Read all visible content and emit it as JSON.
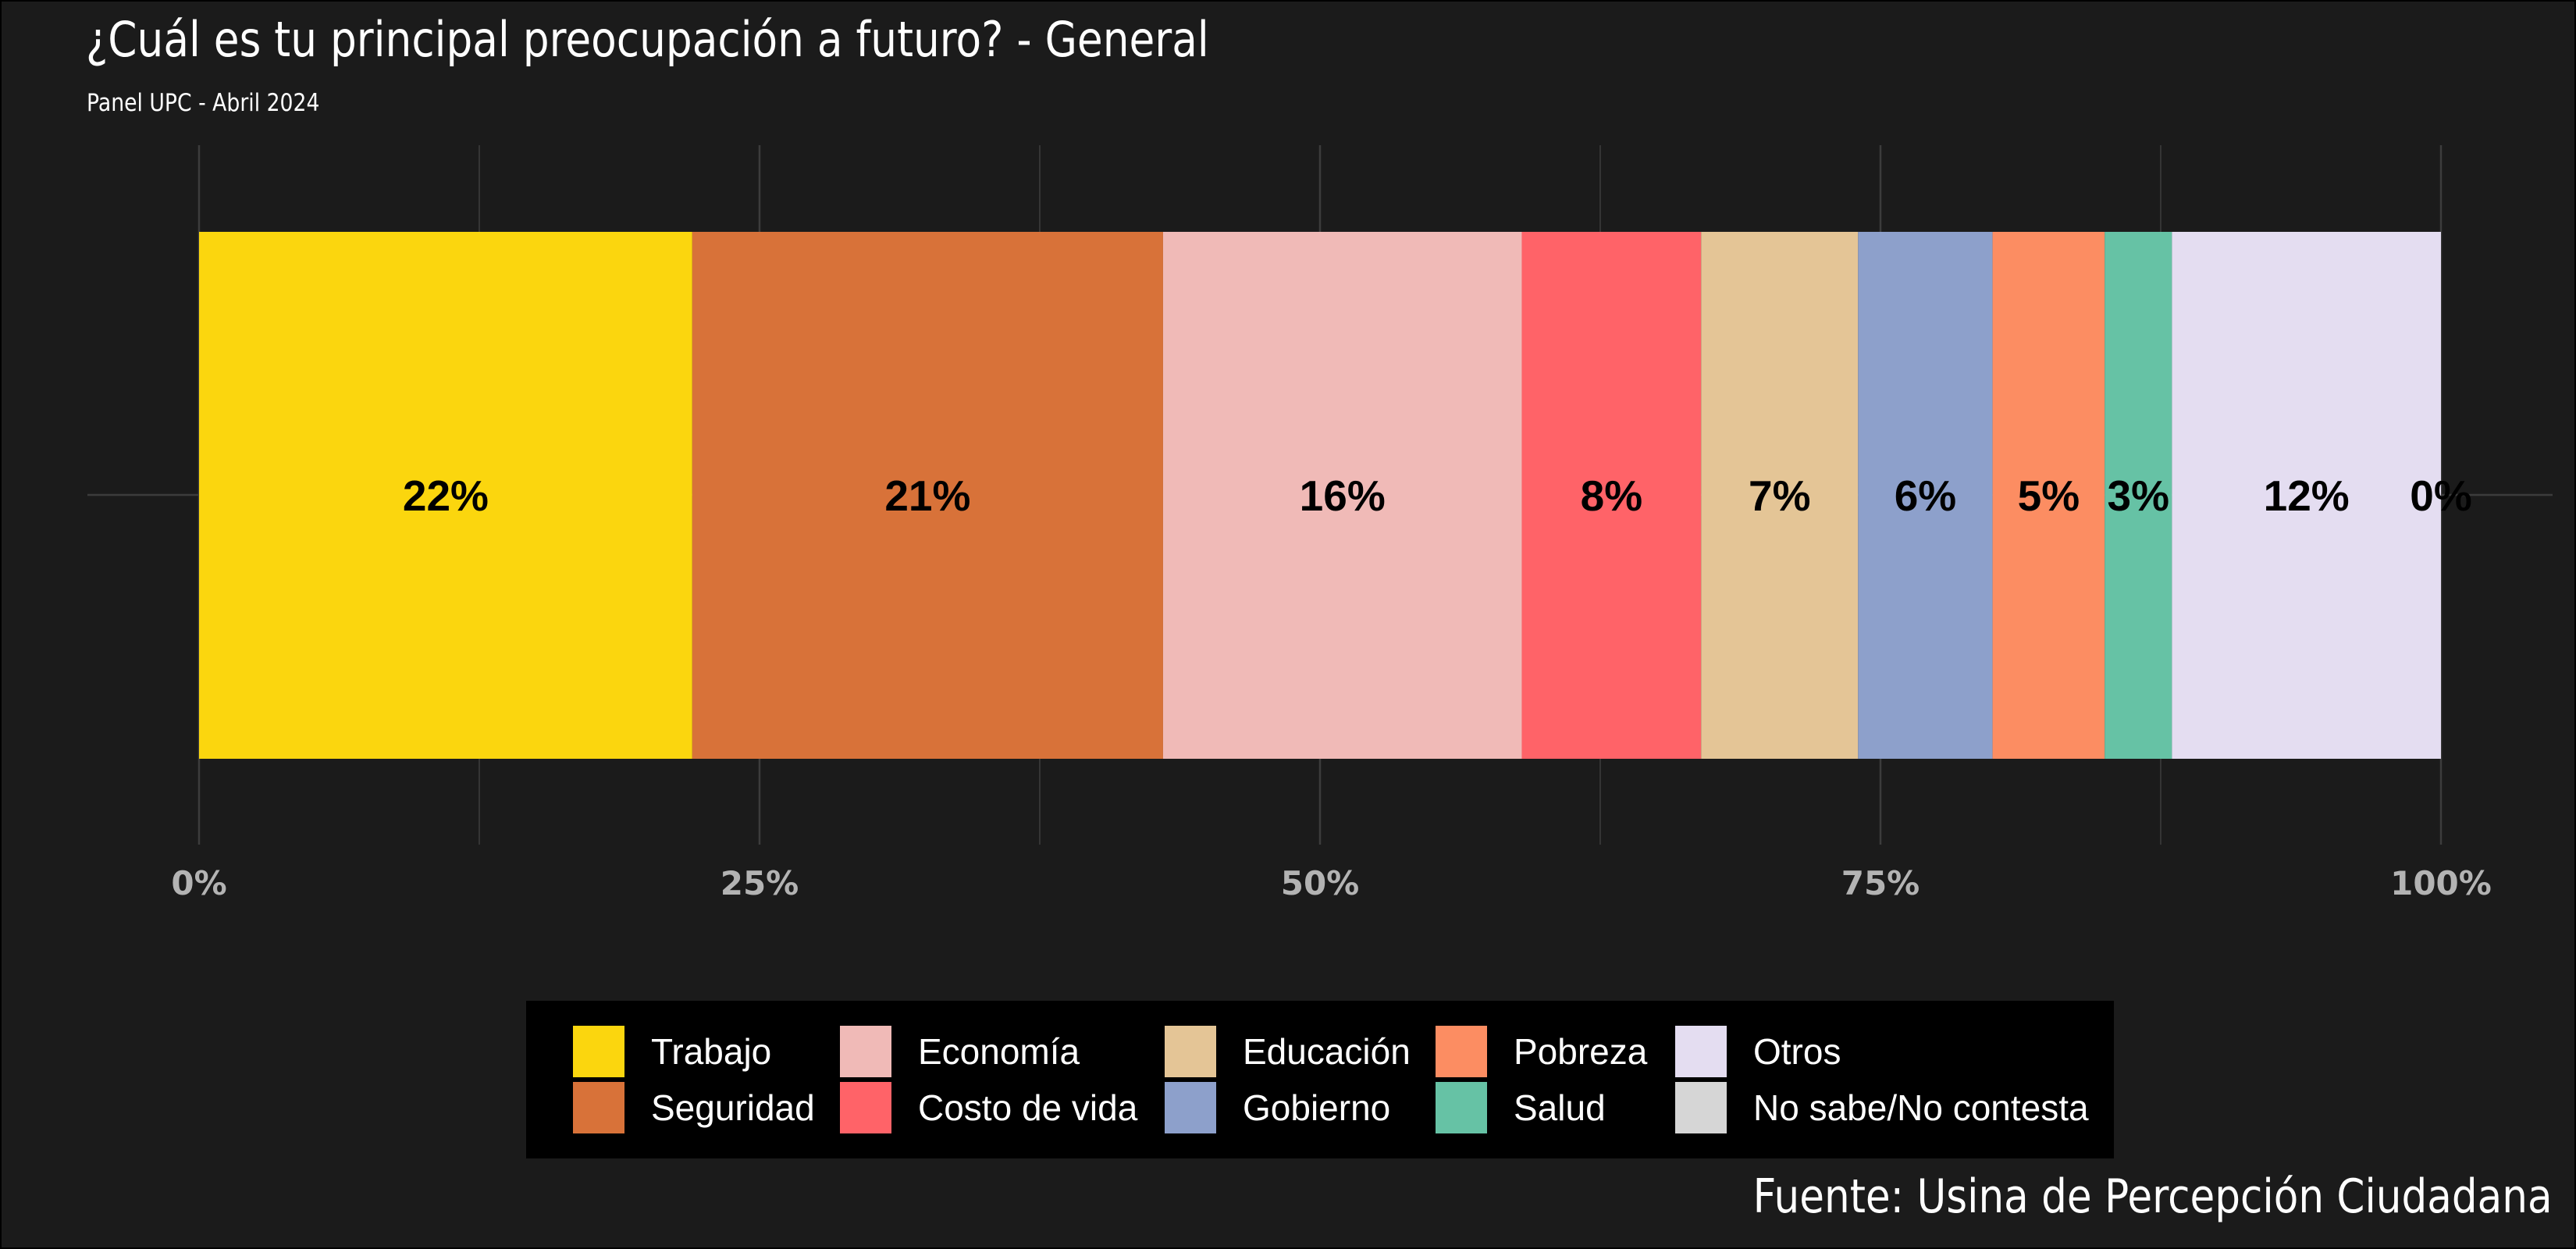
{
  "title": "¿Cuál es tu principal preocupación a futuro? - General",
  "subtitle": "Panel UPC - Abril 2024",
  "source": "Fuente: Usina de Percepción Ciudadana",
  "colors": {
    "background": "#1b1b1b",
    "legend_background": "#000000",
    "text": "#ffffff",
    "axis_text": "#b3b3b3",
    "grid": "#3c3c3c"
  },
  "chart_data": {
    "type": "bar",
    "orientation": "horizontal",
    "stacked": true,
    "xlim": [
      0,
      100
    ],
    "x_ticks": [
      "0%",
      "25%",
      "50%",
      "75%",
      "100%"
    ],
    "grid": true,
    "legend_position": "bottom",
    "series": [
      {
        "name": "Trabajo",
        "value": 22,
        "start": 0,
        "end": 22,
        "label": "22%",
        "color": "#fbd60e"
      },
      {
        "name": "Seguridad",
        "value": 21,
        "start": 22,
        "end": 43,
        "label": "21%",
        "color": "#d87239"
      },
      {
        "name": "Economía",
        "value": 16,
        "start": 43,
        "end": 59,
        "label": "16%",
        "color": "#f0bab7"
      },
      {
        "name": "Costo de vida",
        "value": 8,
        "start": 59,
        "end": 67,
        "label": "8%",
        "color": "#ff6368"
      },
      {
        "name": "Educación",
        "value": 7,
        "start": 67,
        "end": 74,
        "label": "7%",
        "color": "#e4c596"
      },
      {
        "name": "Gobierno",
        "value": 6,
        "start": 74,
        "end": 80,
        "label": "6%",
        "color": "#8da0cb"
      },
      {
        "name": "Pobreza",
        "value": 5,
        "start": 80,
        "end": 85,
        "label": "5%",
        "color": "#fc8d62"
      },
      {
        "name": "Salud",
        "value": 3,
        "start": 85,
        "end": 88,
        "label": "3%",
        "color": "#66c2a5"
      },
      {
        "name": "Otros",
        "value": 12,
        "start": 88,
        "end": 100,
        "label": "12%",
        "color": "#e4ddf1"
      },
      {
        "name": "No sabe/No contesta",
        "value": 0,
        "start": 100,
        "end": 100,
        "label": "0%",
        "color": "#d6d6d6"
      }
    ]
  }
}
